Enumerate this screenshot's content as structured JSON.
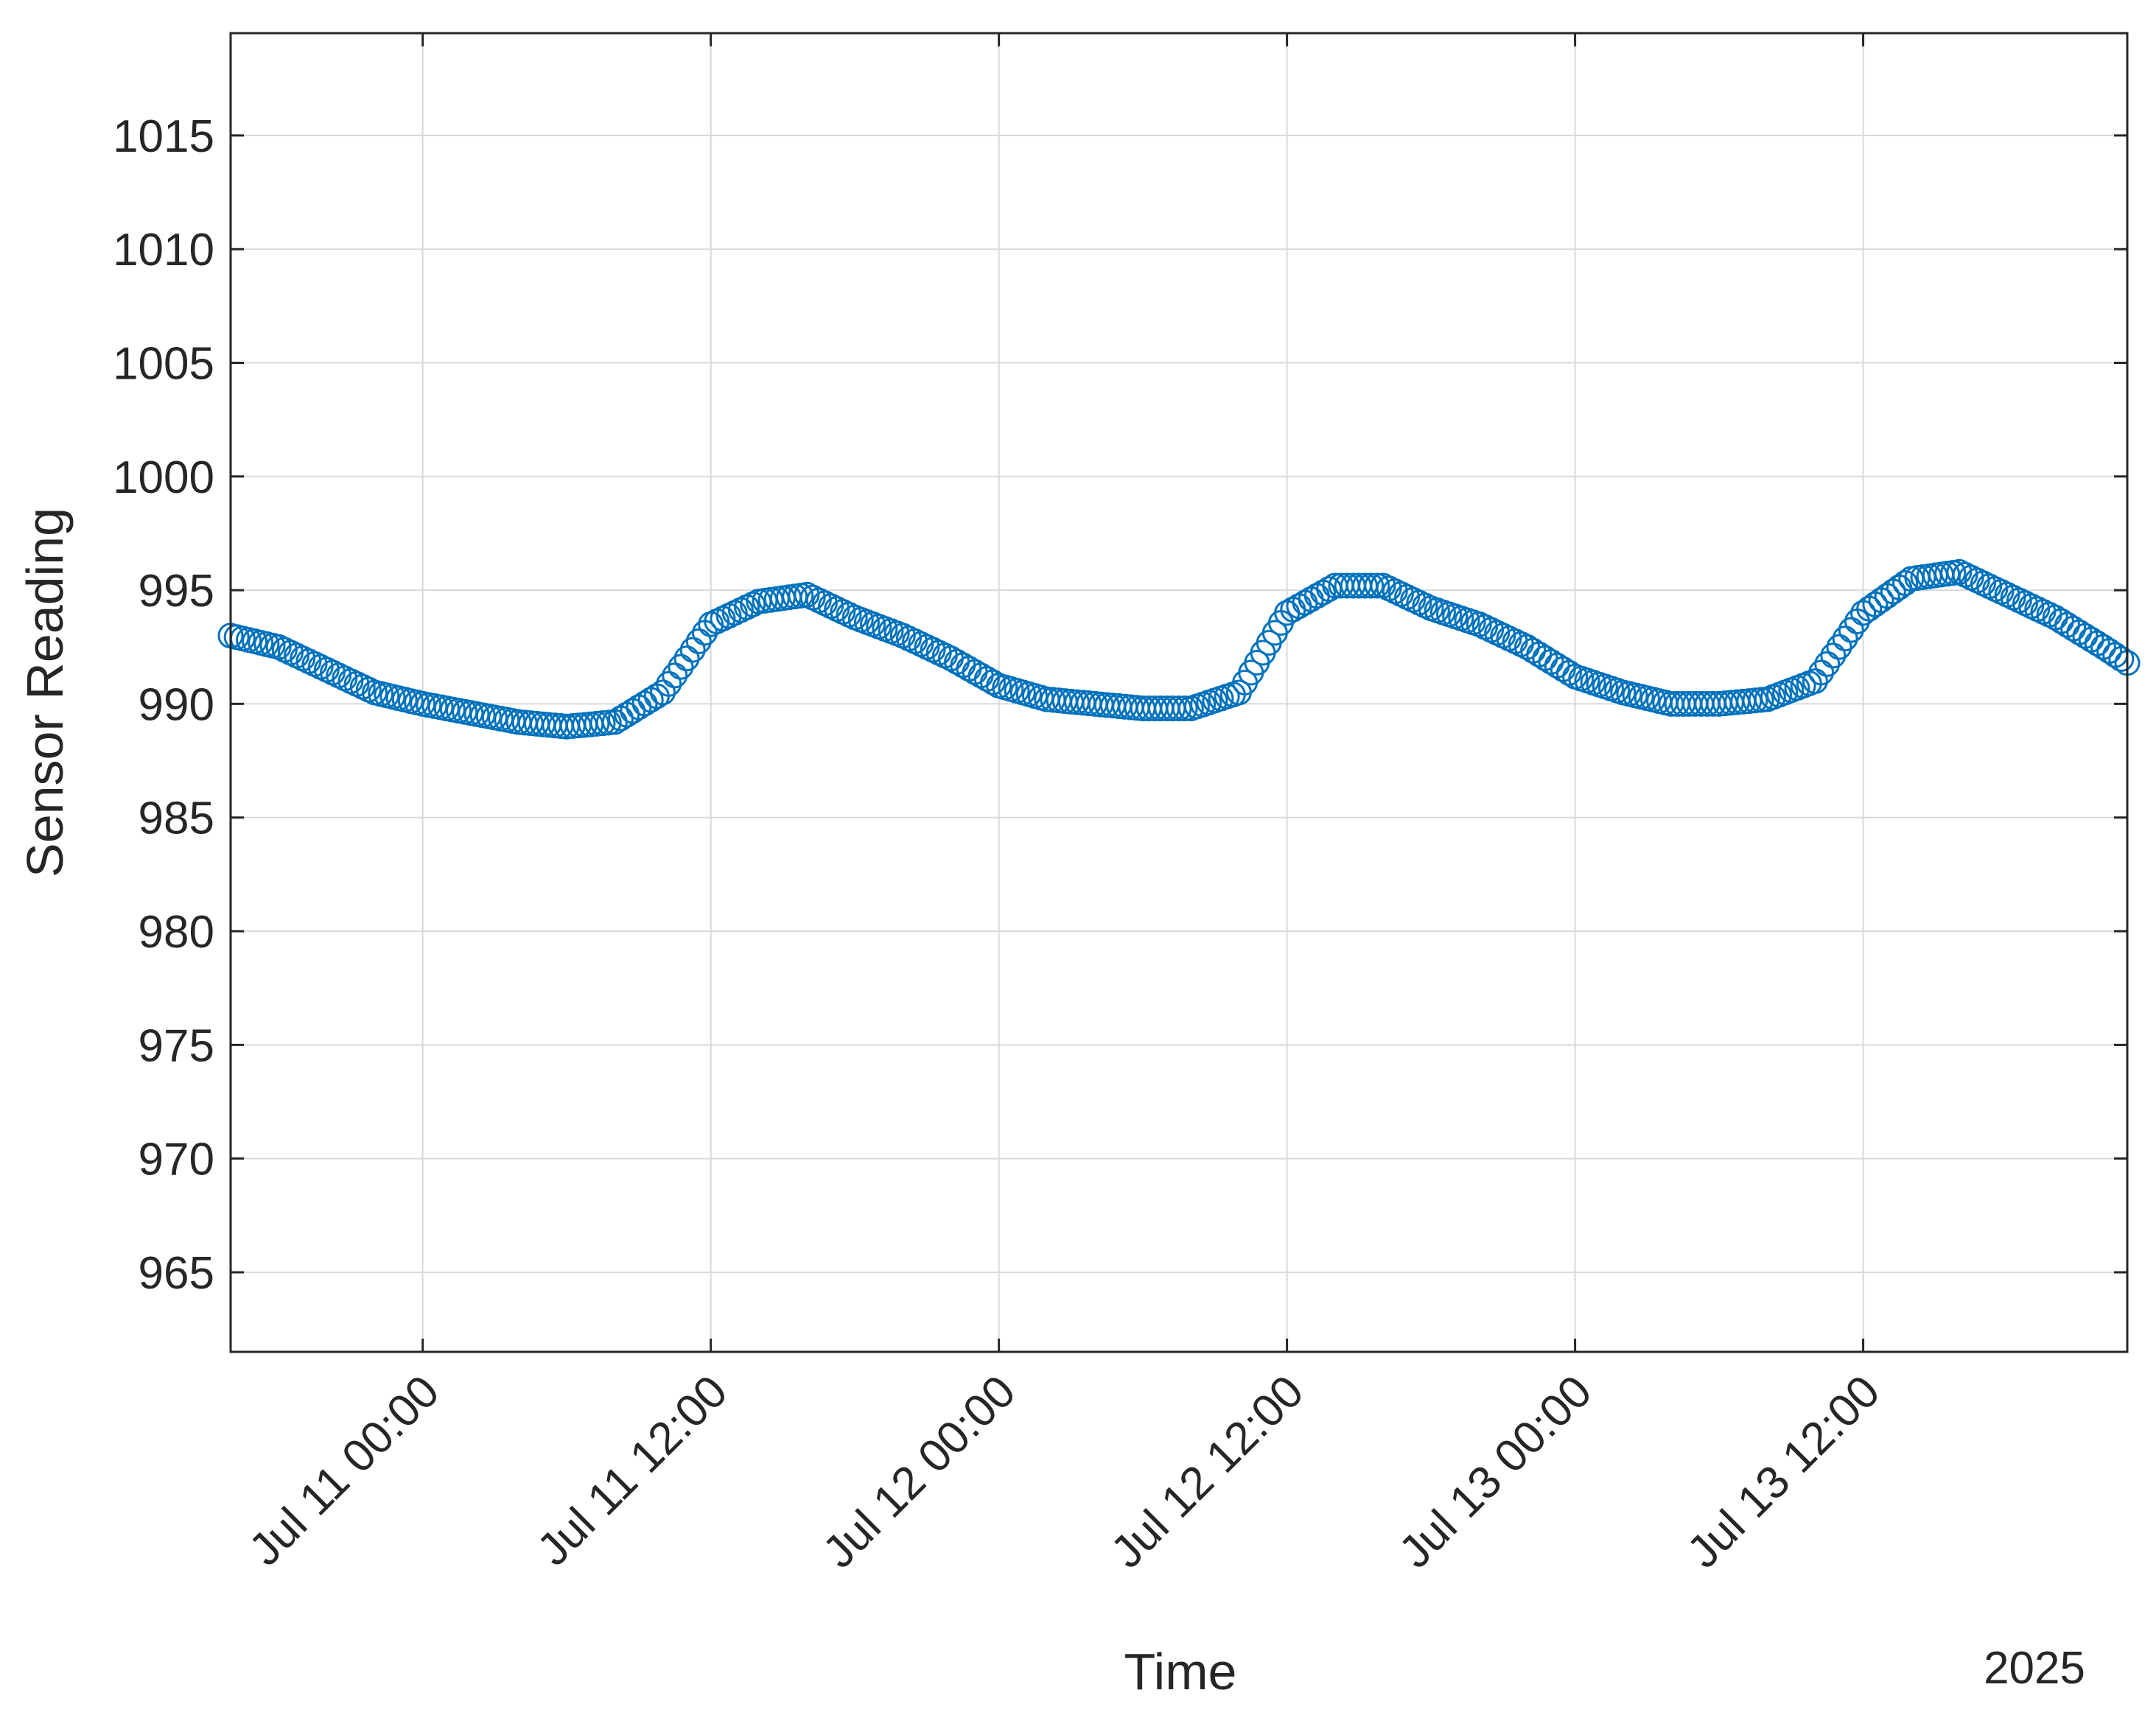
{
  "chart_data": {
    "type": "scatter",
    "marker": "open-circle",
    "color": "#0072BD",
    "xlabel": "Time",
    "ylabel": "Sensor Reading",
    "year_label": "2025",
    "grid": true,
    "xlim": [
      "2025-07-10T16:00",
      "2025-07-13T23:00"
    ],
    "ylim": [
      961.5,
      1019.5
    ],
    "x_ticks": [
      "2025-07-11T00:00",
      "2025-07-11T12:00",
      "2025-07-12T00:00",
      "2025-07-12T12:00",
      "2025-07-13T00:00",
      "2025-07-13T12:00"
    ],
    "x_tick_labels": [
      "Jul 11 00:00",
      "Jul 11 12:00",
      "Jul 12 00:00",
      "Jul 12 12:00",
      "Jul 13 00:00",
      "Jul 13 12:00"
    ],
    "y_ticks": [
      965,
      970,
      975,
      980,
      985,
      990,
      995,
      1000,
      1005,
      1010,
      1015
    ],
    "y_tick_labels": [
      "965",
      "970",
      "975",
      "980",
      "985",
      "990",
      "995",
      "1000",
      "1005",
      "1010",
      "1015"
    ],
    "series": [
      {
        "x": [
          "2025-07-10T16:00",
          "2025-07-10T18:00",
          "2025-07-10T20:00",
          "2025-07-10T22:00",
          "2025-07-11T00:00",
          "2025-07-11T02:00",
          "2025-07-11T04:00",
          "2025-07-11T06:00",
          "2025-07-11T08:00",
          "2025-07-11T10:00",
          "2025-07-11T12:00",
          "2025-07-11T14:00",
          "2025-07-11T16:00",
          "2025-07-11T18:00",
          "2025-07-11T20:00",
          "2025-07-11T22:00",
          "2025-07-12T00:00",
          "2025-07-12T02:00",
          "2025-07-12T04:00",
          "2025-07-12T06:00",
          "2025-07-12T08:00",
          "2025-07-12T10:00",
          "2025-07-12T12:00",
          "2025-07-12T14:00",
          "2025-07-12T16:00",
          "2025-07-12T18:00",
          "2025-07-12T20:00",
          "2025-07-12T22:00",
          "2025-07-13T00:00",
          "2025-07-13T02:00",
          "2025-07-13T04:00",
          "2025-07-13T06:00",
          "2025-07-13T08:00",
          "2025-07-13T10:00",
          "2025-07-13T12:00",
          "2025-07-13T14:00",
          "2025-07-13T16:00",
          "2025-07-13T18:00",
          "2025-07-13T20:00",
          "2025-07-13T22:00",
          "2025-07-13T23:00"
        ],
        "y": [
          993.0,
          992.5,
          991.5,
          990.5,
          990.0,
          989.6,
          989.2,
          989.0,
          989.2,
          990.5,
          993.5,
          994.5,
          994.8,
          993.8,
          993.0,
          992.0,
          990.8,
          990.2,
          990.0,
          989.8,
          989.8,
          990.5,
          994.0,
          995.2,
          995.2,
          994.2,
          993.5,
          992.5,
          991.2,
          990.5,
          990.0,
          990.0,
          990.2,
          991.0,
          994.0,
          995.5,
          995.8,
          994.8,
          993.8,
          992.5,
          991.8
        ]
      }
    ]
  }
}
